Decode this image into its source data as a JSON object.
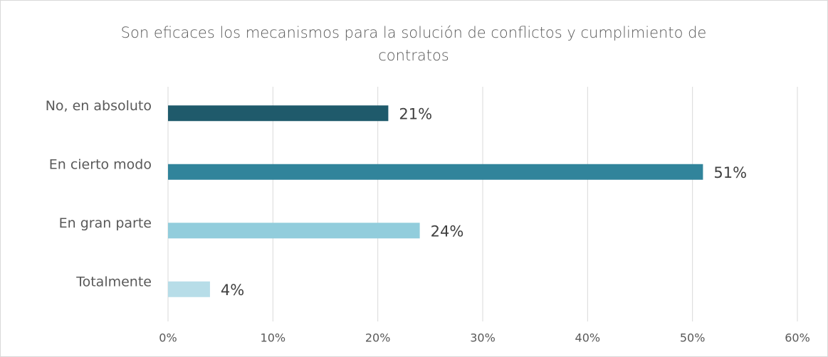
{
  "chart_data": {
    "type": "bar",
    "orientation": "horizontal",
    "title": "Son eficaces los mecanismos para la solución de conflictos y cumplimiento de contratos",
    "categories": [
      "No, en absoluto",
      "En cierto modo",
      "En gran parte",
      "Totalmente"
    ],
    "values": [
      21,
      51,
      24,
      4
    ],
    "value_labels": [
      "21%",
      "51%",
      "24%",
      "4%"
    ],
    "colors": [
      "#1f5a6b",
      "#31849b",
      "#92cddc",
      "#b7dde8"
    ],
    "xlim": [
      0,
      60
    ],
    "xticks": [
      {
        "value": 0,
        "label": "0%"
      },
      {
        "value": 10,
        "label": "10%"
      },
      {
        "value": 20,
        "label": "20%"
      },
      {
        "value": 30,
        "label": "30%"
      },
      {
        "value": 40,
        "label": "40%"
      },
      {
        "value": 50,
        "label": "50%"
      },
      {
        "value": 60,
        "label": "60%"
      }
    ],
    "grid": true
  }
}
